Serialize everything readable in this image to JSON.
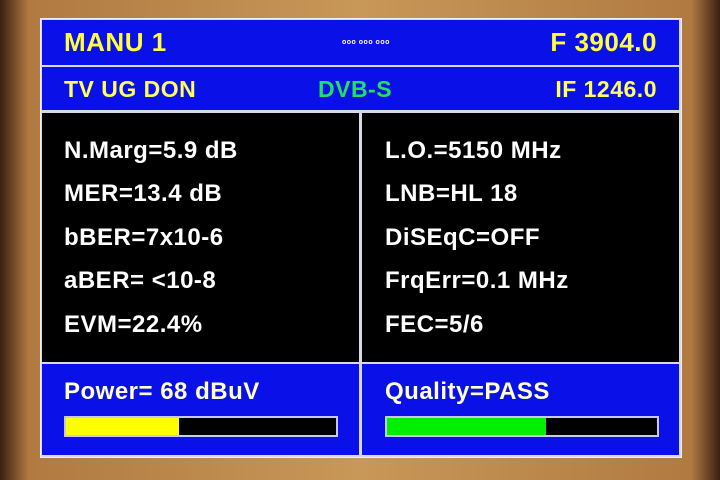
{
  "header": {
    "title": "MANU 1",
    "status_dots": "ooo ooo ooo",
    "frequency": "F 3904.0"
  },
  "subheader": {
    "channel": "TV UG DON",
    "standard": "DVB-S",
    "if": "IF 1246.0"
  },
  "left_values": [
    "N.Marg=5.9 dB",
    "MER=13.4 dB",
    "bBER=7x10-6",
    "aBER= <10-8",
    "EVM=22.4%"
  ],
  "right_values": [
    "L.O.=5150 MHz",
    "LNB=HL 18",
    "DiSEqC=OFF",
    "FrqErr=0.1 MHz",
    "FEC=5/6"
  ],
  "power": {
    "label": "Power= 68 dBuV",
    "level_percent": 42,
    "color": "#ffff00"
  },
  "quality": {
    "label": "Quality=PASS",
    "level_percent": 59,
    "color": "#00f000"
  },
  "colors": {
    "panel_blue": "#0a10e8",
    "header_text": "#ffff40",
    "dvb_text": "#20e060"
  }
}
